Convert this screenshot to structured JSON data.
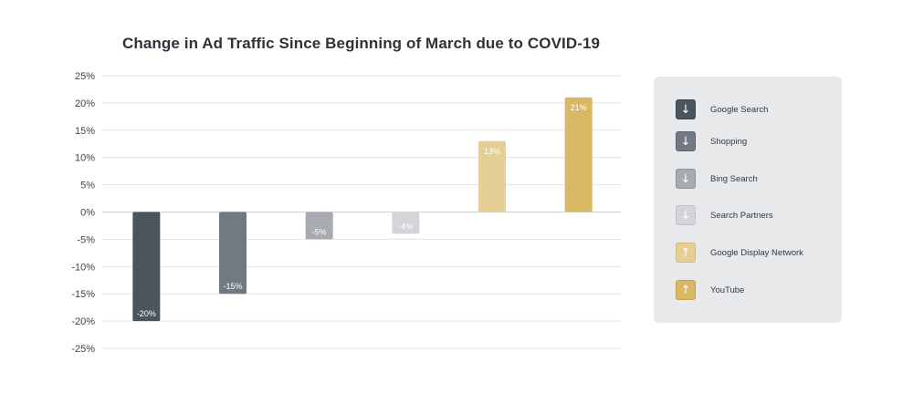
{
  "chart_data": {
    "type": "bar",
    "title": "Change in Ad Traffic Since Beginning of March due to COVID-19",
    "categories": [
      "Google Search",
      "Shopping",
      "Bing Search",
      "Search Partners",
      "Google Display Network",
      "YouTube"
    ],
    "values": [
      -20,
      -15,
      -5,
      -4,
      13,
      21
    ],
    "data_labels": [
      "-20%",
      "-15%",
      "-5%",
      "-4%",
      "13%",
      "21%"
    ],
    "colors": [
      "#4a545d",
      "#717a82",
      "#a7abb0",
      "#d3d5d8",
      "#e6cf95",
      "#d9b865"
    ],
    "label_colors": [
      "#ffffff",
      "#ffffff",
      "#ffffff",
      "#ffffff",
      "#ffffff",
      "#ffffff"
    ],
    "ylim": [
      -25,
      25
    ],
    "yticks": [
      25,
      20,
      15,
      10,
      5,
      0,
      -5,
      -10,
      -15,
      -20,
      -25
    ],
    "ytick_labels": [
      "25%",
      "20%",
      "15%",
      "10%",
      "5%",
      "0%",
      "-5%",
      "-10%",
      "-15%",
      "-20%",
      "-25%"
    ],
    "xlabel": "",
    "ylabel": "",
    "grid": true,
    "legend_position": "right"
  },
  "legend": {
    "items": [
      {
        "label": "Google Search",
        "arrow": "↓",
        "icon": "arrow-down-icon",
        "color": "#4a545d",
        "border": "#3b444c"
      },
      {
        "label": "Shopping",
        "arrow": "↓",
        "icon": "arrow-down-icon",
        "color": "#717a82",
        "border": "#5c656c"
      },
      {
        "label": "Bing Search",
        "arrow": "↓",
        "icon": "arrow-down-icon",
        "color": "#a7abb0",
        "border": "#8f9499"
      },
      {
        "label": "Search Partners",
        "arrow": "↓",
        "icon": "arrow-down-icon",
        "color": "#d3d5d8",
        "border": "#bfc2c6"
      },
      {
        "label": "Google Display Network",
        "arrow": "↑",
        "icon": "arrow-up-icon",
        "color": "#e6cf95",
        "border": "#d4b978"
      },
      {
        "label": "YouTube",
        "arrow": "↑",
        "icon": "arrow-up-icon",
        "color": "#d9b865",
        "border": "#c4a04c"
      }
    ]
  }
}
